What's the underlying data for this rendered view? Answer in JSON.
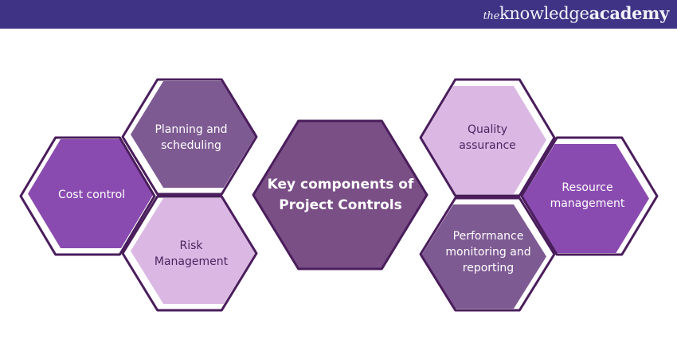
{
  "header": {
    "background": "#3f3385",
    "logo_the": "the",
    "logo_knowledge": "knowledge",
    "logo_academy": "academy"
  },
  "colors": {
    "outline": "#4a1d5c",
    "dark_purple": "#8a4bb0",
    "muted_purple": "#7e5a93",
    "light_purple": "#dbb8e4",
    "center": "#7a4f86",
    "light_text": "#4a2560"
  },
  "diagram": {
    "center": {
      "label": "Key components of Project Controls"
    },
    "items": [
      {
        "label": "Cost control"
      },
      {
        "label": "Planning and scheduling"
      },
      {
        "label": "Risk Management"
      },
      {
        "label": "Quality assurance"
      },
      {
        "label": "Resource management"
      },
      {
        "label": "Performance monitoring and reporting"
      }
    ]
  }
}
